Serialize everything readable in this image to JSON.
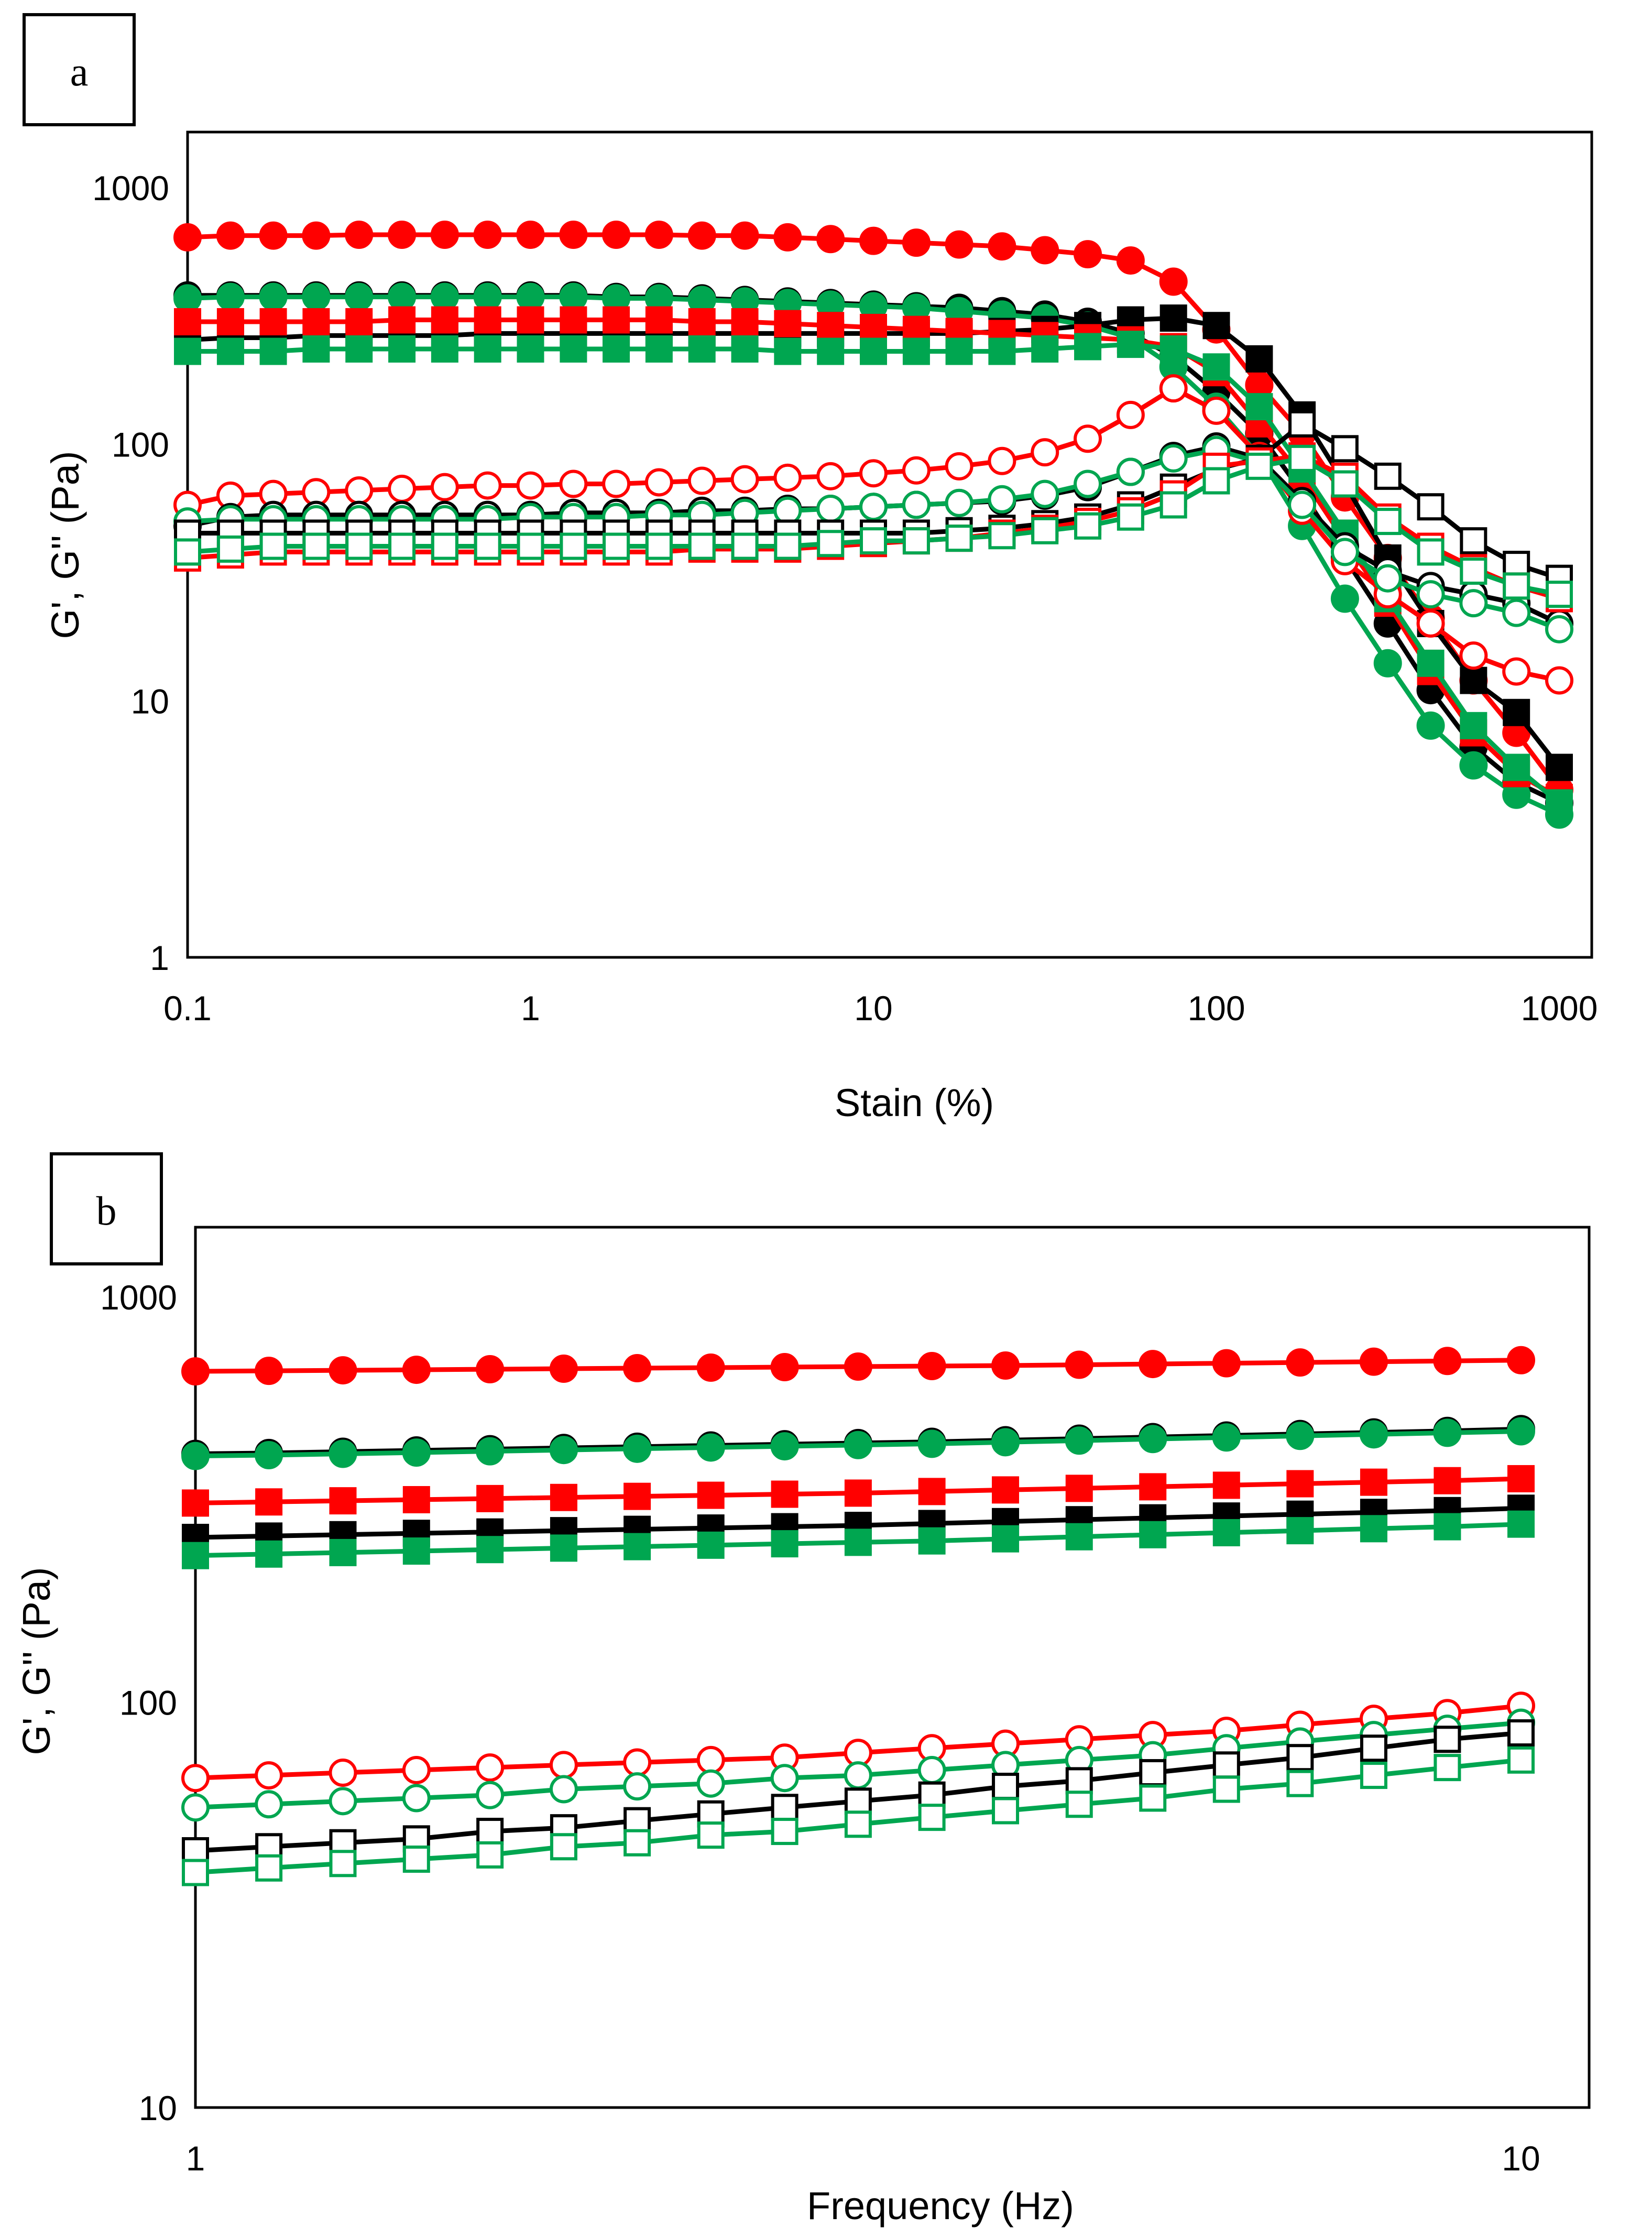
{
  "chart_data": [
    {
      "panel": "a",
      "type": "scatter",
      "xscale": "log",
      "yscale": "log",
      "xlabel": "Stain (%)",
      "ylabel": "G', G'' (Pa)",
      "xlim": [
        0.1,
        1000
      ],
      "ylim": [
        1,
        1000
      ],
      "xticks": [
        "0.1",
        "1",
        "10",
        "100",
        "1000"
      ],
      "yticks": [
        "1",
        "10",
        "100",
        "1000"
      ],
      "x": [
        0.1,
        0.1334,
        0.1778,
        0.2371,
        0.3162,
        0.4217,
        0.5623,
        0.7499,
        1,
        1.334,
        1.778,
        2.371,
        3.162,
        4.217,
        5.623,
        7.499,
        10,
        13.34,
        17.78,
        23.71,
        31.62,
        42.17,
        56.23,
        74.99,
        100,
        133.4,
        177.8,
        237.1,
        316.2,
        421.7,
        562.3,
        749.9,
        1000
      ],
      "series": [
        {
          "name": "G' red",
          "color": "#ff0000",
          "marker": "circle",
          "filled": true,
          "values": [
            640,
            650,
            650,
            650,
            655,
            655,
            655,
            655,
            655,
            655,
            655,
            655,
            650,
            650,
            640,
            630,
            620,
            610,
            600,
            590,
            570,
            550,
            520,
            430,
            280,
            170,
            110,
            62,
            36,
            21,
            12,
            7.5,
            4.5
          ]
        },
        {
          "name": "G' black",
          "color": "#000000",
          "marker": "circle",
          "filled": true,
          "values": [
            380,
            380,
            380,
            380,
            380,
            380,
            380,
            380,
            380,
            380,
            375,
            375,
            370,
            365,
            360,
            355,
            350,
            345,
            340,
            330,
            320,
            300,
            270,
            220,
            160,
            110,
            65,
            36,
            20,
            11,
            6.6,
            4.8,
            4.0
          ]
        },
        {
          "name": "G' green",
          "color": "#00a650",
          "marker": "circle",
          "filled": true,
          "values": [
            370,
            375,
            375,
            375,
            375,
            375,
            375,
            375,
            375,
            375,
            370,
            370,
            365,
            360,
            355,
            350,
            345,
            340,
            330,
            320,
            310,
            290,
            260,
            200,
            140,
            90,
            48,
            25,
            14,
            8,
            5.6,
            4.3,
            3.6
          ]
        },
        {
          "name": "G' black sq",
          "color": "#000000",
          "marker": "square",
          "filled": true,
          "values": [
            255,
            260,
            260,
            265,
            265,
            265,
            265,
            270,
            270,
            270,
            270,
            270,
            270,
            270,
            270,
            270,
            270,
            270,
            270,
            275,
            280,
            290,
            305,
            310,
            290,
            215,
            130,
            70,
            36,
            20,
            12,
            9,
            5.5
          ]
        },
        {
          "name": "G' red sq",
          "color": "#ff0000",
          "marker": "square",
          "filled": true,
          "values": [
            300,
            300,
            300,
            300,
            300,
            305,
            305,
            305,
            305,
            305,
            305,
            305,
            300,
            300,
            295,
            290,
            285,
            280,
            275,
            270,
            265,
            260,
            255,
            240,
            190,
            120,
            75,
            42,
            24,
            13,
            7.5,
            5.2,
            4.2
          ]
        },
        {
          "name": "G' green sq",
          "color": "#00a650",
          "marker": "square",
          "filled": true,
          "values": [
            230,
            230,
            230,
            235,
            235,
            235,
            235,
            235,
            235,
            235,
            235,
            235,
            235,
            235,
            230,
            230,
            230,
            230,
            230,
            230,
            235,
            240,
            245,
            235,
            200,
            140,
            80,
            45,
            25,
            14,
            8,
            5.5,
            4.0
          ]
        },
        {
          "name": "G'' red",
          "color": "#ff0000",
          "marker": "circle",
          "filled": false,
          "values": [
            58,
            63,
            64,
            65,
            66,
            67,
            68,
            69,
            69,
            70,
            70,
            71,
            72,
            73,
            74,
            75,
            77,
            79,
            82,
            86,
            93,
            105,
            130,
            165,
            135,
            90,
            55,
            35,
            26,
            20,
            15,
            13,
            12
          ]
        },
        {
          "name": "G'' black",
          "color": "#000000",
          "marker": "circle",
          "filled": false,
          "values": [
            48,
            52,
            53,
            53,
            53,
            53,
            53,
            53,
            53,
            54,
            54,
            54,
            55,
            55,
            56,
            56,
            57,
            58,
            59,
            60,
            63,
            68,
            78,
            90,
            98,
            88,
            60,
            40,
            32,
            28,
            26,
            24,
            20
          ]
        },
        {
          "name": "G'' green",
          "color": "#00a650",
          "marker": "circle",
          "filled": false,
          "values": [
            50,
            51,
            51,
            51,
            51,
            51,
            51,
            51,
            52,
            52,
            52,
            53,
            53,
            54,
            55,
            56,
            57,
            58,
            59,
            61,
            64,
            70,
            78,
            88,
            95,
            85,
            58,
            38,
            30,
            26,
            24,
            22,
            19
          ]
        },
        {
          "name": "G'' black sq",
          "color": "#000000",
          "marker": "square",
          "filled": false,
          "values": [
            45,
            45,
            45,
            45,
            45,
            45,
            45,
            45,
            45,
            45,
            45,
            45,
            45,
            45,
            45,
            45,
            45,
            45,
            46,
            47,
            49,
            52,
            58,
            68,
            80,
            88,
            120,
            96,
            75,
            57,
            42,
            34,
            30
          ]
        },
        {
          "name": "G'' red sq",
          "color": "#ff0000",
          "marker": "square",
          "filled": false,
          "values": [
            36,
            37,
            38,
            38,
            38,
            38,
            38,
            38,
            38,
            38,
            38,
            38,
            39,
            39,
            39,
            40,
            41,
            42,
            43,
            45,
            47,
            50,
            55,
            64,
            82,
            86,
            90,
            75,
            52,
            40,
            33,
            28,
            25
          ]
        },
        {
          "name": "G'' green sq",
          "color": "#00a650",
          "marker": "square",
          "filled": false,
          "values": [
            38,
            39,
            40,
            40,
            40,
            40,
            40,
            40,
            40,
            40,
            40,
            40,
            40,
            40,
            40,
            41,
            42,
            42,
            43,
            44,
            46,
            48,
            52,
            58,
            72,
            82,
            88,
            70,
            50,
            38,
            32,
            28,
            26
          ]
        }
      ]
    },
    {
      "panel": "b",
      "type": "scatter",
      "xscale": "log",
      "yscale": "log",
      "xlabel": "Frequency (Hz)",
      "ylabel": "G', G'' (Pa)",
      "xlim": [
        1,
        10
      ],
      "ylim": [
        10,
        1000
      ],
      "xticks": [
        "1",
        "10"
      ],
      "yticks": [
        "10",
        "100",
        "1000"
      ],
      "x": [
        1,
        1.136,
        1.292,
        1.468,
        1.668,
        1.896,
        2.154,
        2.448,
        2.783,
        3.162,
        3.594,
        4.084,
        4.642,
        5.275,
        5.995,
        6.813,
        7.743,
        8.799,
        10
      ],
      "series": [
        {
          "name": "G' red",
          "color": "#ff0000",
          "marker": "circle",
          "filled": true,
          "values": [
            655,
            657,
            659,
            661,
            663,
            665,
            667,
            669,
            671,
            673,
            675,
            677,
            680,
            683,
            686,
            689,
            692,
            695,
            698
          ]
        },
        {
          "name": "G' black",
          "color": "#000000",
          "marker": "circle",
          "filled": true,
          "values": [
            410,
            412,
            415,
            418,
            421,
            424,
            427,
            430,
            433,
            436,
            439,
            443,
            447,
            451,
            455,
            459,
            463,
            467,
            472
          ]
        },
        {
          "name": "G' green",
          "color": "#00a650",
          "marker": "circle",
          "filled": true,
          "values": [
            405,
            407,
            410,
            413,
            416,
            419,
            422,
            425,
            428,
            431,
            434,
            438,
            442,
            446,
            450,
            454,
            458,
            462,
            466
          ]
        },
        {
          "name": "G' red sq",
          "color": "#ff0000",
          "marker": "square",
          "filled": true,
          "values": [
            310,
            312,
            314,
            316,
            318,
            320,
            322,
            324,
            326,
            328,
            331,
            334,
            337,
            340,
            343,
            346,
            349,
            352,
            356
          ]
        },
        {
          "name": "G' black sq",
          "color": "#000000",
          "marker": "square",
          "filled": true,
          "values": [
            255,
            257,
            259,
            261,
            263,
            265,
            267,
            269,
            271,
            273,
            276,
            279,
            282,
            285,
            288,
            291,
            294,
            297,
            301
          ]
        },
        {
          "name": "G' green sq",
          "color": "#00a650",
          "marker": "square",
          "filled": true,
          "values": [
            230,
            232,
            234,
            236,
            238,
            240,
            242,
            244,
            246,
            248,
            250,
            253,
            256,
            259,
            262,
            265,
            268,
            271,
            275
          ]
        },
        {
          "name": "G'' red",
          "color": "#ff0000",
          "marker": "circle",
          "filled": false,
          "values": [
            65,
            66,
            67,
            68,
            69,
            70,
            71,
            72,
            73,
            75,
            77,
            79,
            81,
            83,
            85,
            88,
            91,
            94,
            98
          ]
        },
        {
          "name": "G'' green",
          "color": "#00a650",
          "marker": "circle",
          "filled": false,
          "values": [
            55,
            56,
            57,
            58,
            59,
            61,
            62,
            63,
            65,
            66,
            68,
            70,
            72,
            74,
            77,
            80,
            83,
            86,
            89
          ]
        },
        {
          "name": "G'' black sq",
          "color": "#000000",
          "marker": "square",
          "filled": false,
          "values": [
            43,
            44,
            45,
            46,
            48,
            49,
            51,
            53,
            55,
            57,
            59,
            62,
            64,
            67,
            70,
            73,
            77,
            81,
            84
          ]
        },
        {
          "name": "G'' green sq",
          "color": "#00a650",
          "marker": "square",
          "filled": false,
          "values": [
            38,
            39,
            40,
            41,
            42,
            44,
            45,
            47,
            48,
            50,
            52,
            54,
            56,
            58,
            61,
            63,
            66,
            69,
            72
          ]
        }
      ]
    }
  ],
  "panels": [
    {
      "label": "a"
    },
    {
      "label": "b"
    }
  ]
}
